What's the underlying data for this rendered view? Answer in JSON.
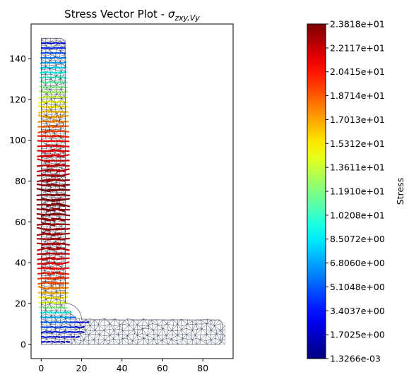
{
  "chart_data": [
    {
      "type": "scatter",
      "title": "Stress Vector Plot - ",
      "title_math": "σzxy,Vy",
      "title_math_base": "σ",
      "title_math_sub": "zxy,Vy",
      "xlabel": "",
      "ylabel": "",
      "xlim": [
        -5,
        95
      ],
      "ylim": [
        -7,
        157
      ],
      "xticks": [
        "0",
        "20",
        "40",
        "60",
        "80"
      ],
      "xtick_values": [
        0,
        20,
        40,
        60,
        80
      ],
      "yticks": [
        "0",
        "20",
        "40",
        "60",
        "80",
        "100",
        "120",
        "140"
      ],
      "ytick_values": [
        0,
        20,
        40,
        60,
        80,
        100,
        120,
        140
      ],
      "grid": false,
      "shape": {
        "description": "L-shaped section mesh",
        "vertical_leg": {
          "x": [
            0,
            12
          ],
          "y": [
            0,
            150
          ]
        },
        "horizontal_leg": {
          "x": [
            0,
            90
          ],
          "y": [
            0,
            12
          ]
        }
      },
      "stress_profile": [
        {
          "y": 0,
          "stress": 1.0
        },
        {
          "y": 12,
          "stress": 6.0
        },
        {
          "y": 20,
          "stress": 14.0
        },
        {
          "y": 30,
          "stress": 19.0
        },
        {
          "y": 45,
          "stress": 22.5
        },
        {
          "y": 75,
          "stress": 23.8
        },
        {
          "y": 100,
          "stress": 20.5
        },
        {
          "y": 115,
          "stress": 16.0
        },
        {
          "y": 130,
          "stress": 10.5
        },
        {
          "y": 145,
          "stress": 4.0
        },
        {
          "y": 150,
          "stress": 1.0
        }
      ]
    },
    {
      "type": "colorbar",
      "label": "Stress",
      "min": 0.0013266,
      "max": 23.818,
      "ticks": [
        "1.3266e-03",
        "1.7025e+00",
        "3.4037e+00",
        "5.1048e+00",
        "6.8060e+00",
        "8.5072e+00",
        "1.0208e+01",
        "1.1910e+01",
        "1.3611e+01",
        "1.5312e+01",
        "1.7013e+01",
        "1.8714e+01",
        "2.0415e+01",
        "2.2117e+01",
        "2.3818e+01"
      ],
      "colormap": "jet"
    }
  ],
  "colors": {
    "mesh_edge": "#2c3550",
    "axes": "#000000"
  }
}
